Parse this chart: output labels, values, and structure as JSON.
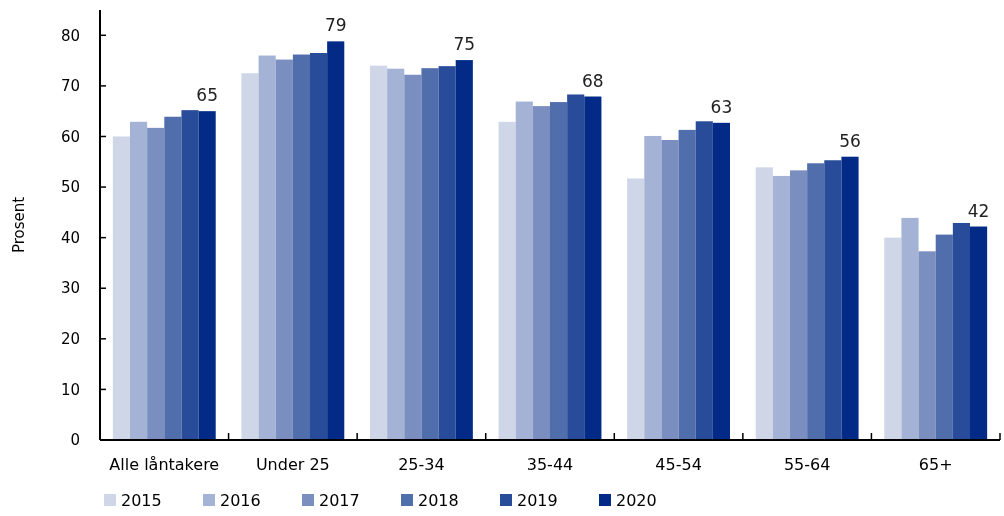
{
  "chart_data": {
    "type": "bar",
    "ylabel": "Prosent",
    "categories": [
      "Alle låntakere",
      "Under 25",
      "25-34",
      "35-44",
      "45-54",
      "55-64",
      "65+"
    ],
    "series": [
      {
        "name": "2015",
        "color": "#cfd6e8",
        "values": [
          60,
          72.5,
          74,
          62.9,
          51.7,
          53.9,
          40
        ]
      },
      {
        "name": "2016",
        "color": "#a4b3d5",
        "values": [
          62.9,
          76,
          73.4,
          66.9,
          60.1,
          52.2,
          43.9
        ]
      },
      {
        "name": "2017",
        "color": "#7a8ebf",
        "values": [
          61.7,
          75.2,
          72.2,
          66,
          59.3,
          53.3,
          37.3
        ]
      },
      {
        "name": "2018",
        "color": "#516eac",
        "values": [
          63.9,
          76.2,
          73.5,
          66.8,
          61.3,
          54.7,
          40.6
        ]
      },
      {
        "name": "2019",
        "color": "#284c99",
        "values": [
          65.2,
          76.5,
          73.9,
          68.3,
          63,
          55.3,
          42.9
        ]
      },
      {
        "name": "2020",
        "color": "#022a86",
        "values": [
          65,
          78.8,
          75.1,
          67.9,
          62.7,
          56,
          42.2
        ],
        "value_labels": [
          "65",
          "79",
          "75",
          "68",
          "63",
          "56",
          "42"
        ]
      }
    ],
    "ylim": [
      0,
      85
    ],
    "yticks": [
      0,
      10,
      20,
      30,
      40,
      50,
      60,
      70,
      80
    ],
    "grid": false,
    "legend": "bottom"
  }
}
